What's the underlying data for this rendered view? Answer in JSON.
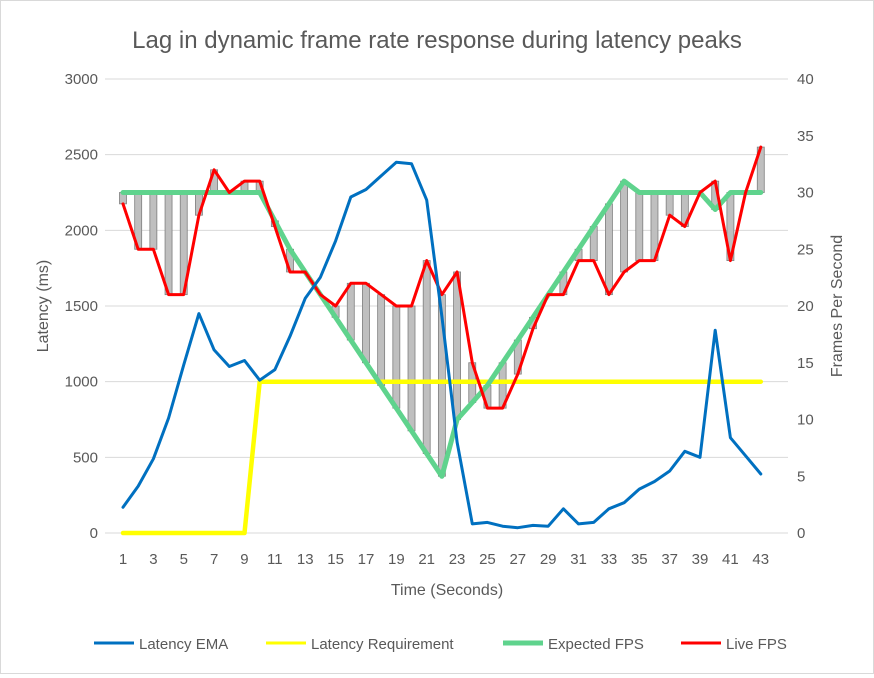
{
  "chart_data": {
    "type": "line",
    "title": "Lag in dynamic frame rate response during latency peaks",
    "xlabel": "Time (Seconds)",
    "ylabel_left": "Latency (ms)",
    "ylabel_right": "Frames Per Second",
    "x_ticks": [
      "1",
      "3",
      "5",
      "7",
      "9",
      "11",
      "13",
      "15",
      "17",
      "19",
      "21",
      "23",
      "25",
      "27",
      "29",
      "31",
      "33",
      "35",
      "37",
      "39",
      "41",
      "43"
    ],
    "x_range": [
      1,
      43
    ],
    "ylim_left": [
      0,
      3000
    ],
    "yticks_left": [
      "0",
      "500",
      "1000",
      "1500",
      "2000",
      "2500",
      "3000"
    ],
    "ylim_right": [
      0,
      40
    ],
    "yticks_right": [
      "0",
      "5",
      "10",
      "15",
      "20",
      "25",
      "30",
      "35",
      "40"
    ],
    "grid": true,
    "legend_position": "bottom",
    "x": [
      1,
      2,
      3,
      4,
      5,
      6,
      7,
      8,
      9,
      10,
      11,
      12,
      13,
      14,
      15,
      16,
      17,
      18,
      19,
      20,
      21,
      22,
      23,
      24,
      25,
      26,
      27,
      28,
      29,
      30,
      31,
      32,
      33,
      34,
      35,
      36,
      37,
      38,
      39,
      40,
      41,
      42,
      43
    ],
    "series": [
      {
        "name": "Latency EMA",
        "axis": "left",
        "color": "#0070C0",
        "values": [
          170,
          310,
          490,
          760,
          1110,
          1450,
          1210,
          1100,
          1140,
          1010,
          1080,
          1300,
          1550,
          1690,
          1930,
          2220,
          2270,
          2360,
          2450,
          2440,
          2200,
          1430,
          600,
          60,
          70,
          45,
          35,
          50,
          45,
          160,
          60,
          70,
          160,
          200,
          290,
          340,
          410,
          540,
          500,
          1340,
          630,
          510,
          390
        ]
      },
      {
        "name": "Latency Requirement",
        "axis": "left",
        "color": "#FFFF00",
        "values": [
          0,
          0,
          0,
          0,
          0,
          0,
          0,
          0,
          0,
          1000,
          1000,
          1000,
          1000,
          1000,
          1000,
          1000,
          1000,
          1000,
          1000,
          1000,
          1000,
          1000,
          1000,
          1000,
          1000,
          1000,
          1000,
          1000,
          1000,
          1000,
          1000,
          1000,
          1000,
          1000,
          1000,
          1000,
          1000,
          1000,
          1000,
          1000,
          1000,
          1000,
          1000
        ]
      },
      {
        "name": "Expected FPS",
        "axis": "right",
        "color": "#5FD38D",
        "values": [
          30,
          30,
          30,
          30,
          30,
          30,
          30,
          30,
          30,
          30,
          27.5,
          25,
          23,
          21,
          19,
          17,
          15,
          13,
          11,
          9,
          7,
          5,
          10,
          11.5,
          13,
          15,
          17,
          19,
          21,
          23,
          25,
          27,
          29,
          31,
          30,
          30,
          30,
          30,
          30,
          28.5,
          30,
          30,
          30
        ]
      },
      {
        "name": "Live FPS",
        "axis": "right",
        "color": "#FF0000",
        "values": [
          29,
          25,
          25,
          21,
          21,
          28,
          32,
          30,
          31,
          31,
          27,
          23,
          23,
          21,
          20,
          22,
          22,
          21,
          20,
          20,
          24,
          21,
          23,
          15,
          11,
          11,
          14,
          18,
          21,
          21,
          24,
          24,
          21,
          23,
          24,
          24,
          28,
          27,
          30,
          31,
          24,
          30,
          34
        ]
      }
    ]
  }
}
